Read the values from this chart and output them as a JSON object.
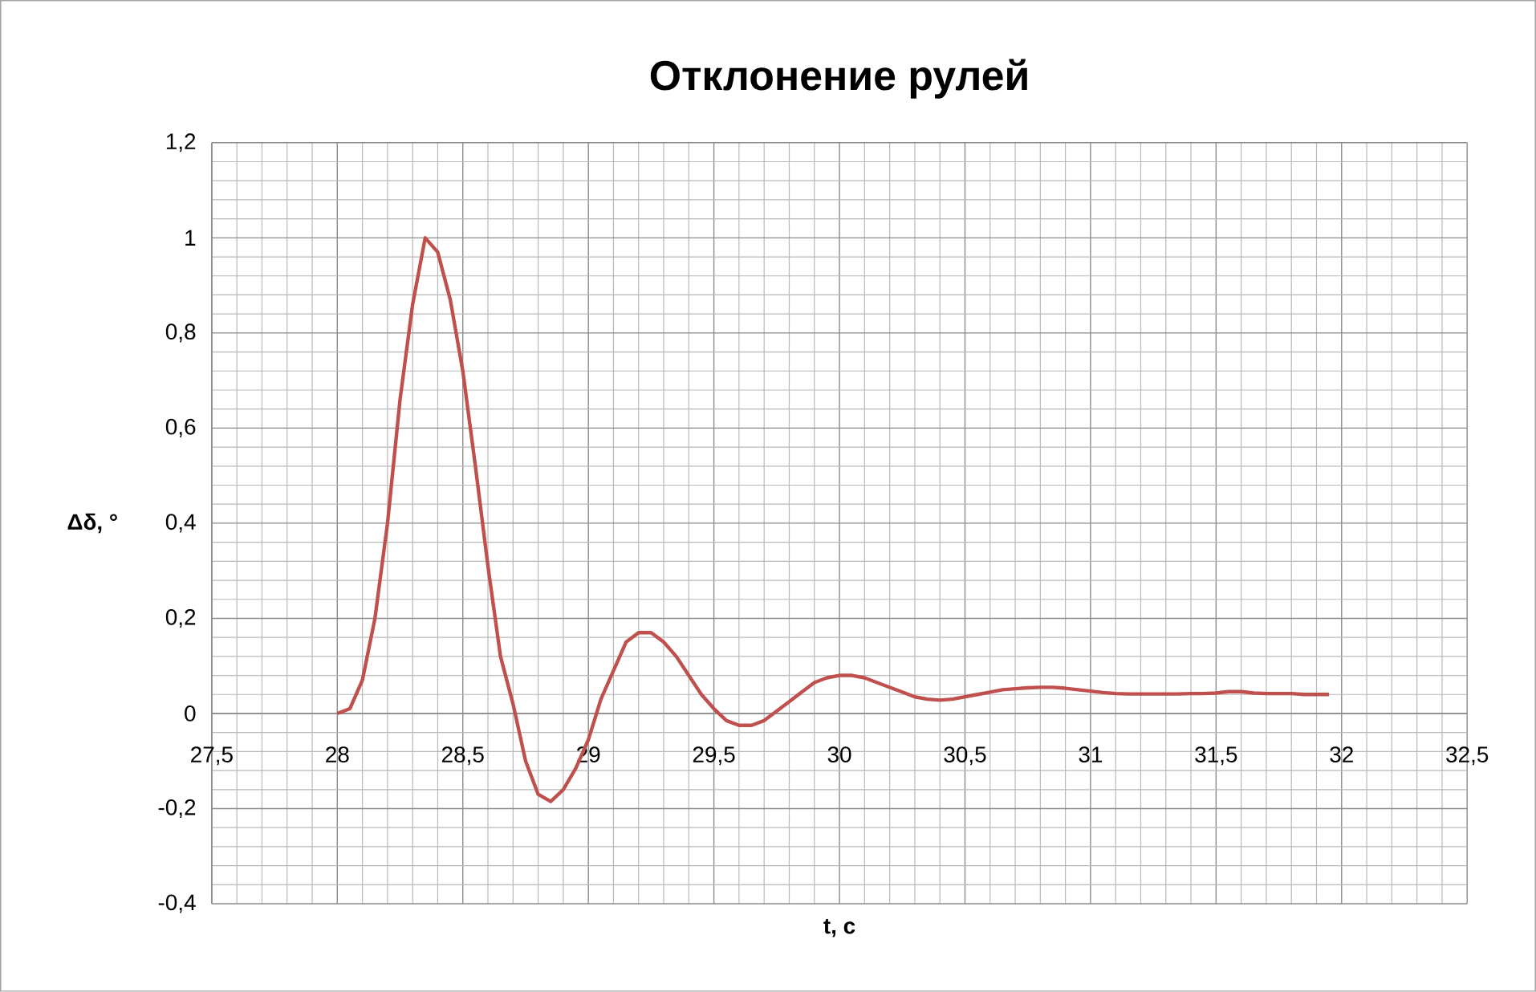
{
  "chart_data": {
    "type": "line",
    "title": "Отклонение рулей",
    "xlabel": "t, c",
    "ylabel": "Δδ, °",
    "x": [
      28.0,
      28.05,
      28.1,
      28.15,
      28.2,
      28.25,
      28.3,
      28.35,
      28.4,
      28.45,
      28.5,
      28.55,
      28.6,
      28.65,
      28.7,
      28.75,
      28.8,
      28.85,
      28.9,
      28.95,
      29.0,
      29.05,
      29.1,
      29.15,
      29.2,
      29.25,
      29.3,
      29.35,
      29.4,
      29.45,
      29.5,
      29.55,
      29.6,
      29.65,
      29.7,
      29.75,
      29.8,
      29.85,
      29.9,
      29.95,
      30.0,
      30.05,
      30.1,
      30.15,
      30.2,
      30.25,
      30.3,
      30.35,
      30.4,
      30.45,
      30.5,
      30.55,
      30.6,
      30.65,
      30.7,
      30.75,
      30.8,
      30.85,
      30.9,
      30.95,
      31.0,
      31.05,
      31.1,
      31.15,
      31.2,
      31.25,
      31.3,
      31.35,
      31.4,
      31.45,
      31.5,
      31.55,
      31.6,
      31.65,
      31.7,
      31.75,
      31.8,
      31.85,
      31.9,
      31.95
    ],
    "series": [
      {
        "color": "#c0504d",
        "values": [
          0,
          0.01,
          0.07,
          0.2,
          0.4,
          0.66,
          0.86,
          1.0,
          0.97,
          0.87,
          0.72,
          0.52,
          0.31,
          0.12,
          0.02,
          -0.1,
          -0.17,
          -0.185,
          -0.16,
          -0.115,
          -0.055,
          0.03,
          0.09,
          0.15,
          0.17,
          0.17,
          0.15,
          0.12,
          0.08,
          0.04,
          0.01,
          -0.015,
          -0.025,
          -0.025,
          -0.015,
          0.005,
          0.025,
          0.045,
          0.065,
          0.075,
          0.08,
          0.08,
          0.075,
          0.065,
          0.055,
          0.045,
          0.035,
          0.03,
          0.028,
          0.03,
          0.035,
          0.04,
          0.045,
          0.05,
          0.052,
          0.054,
          0.055,
          0.055,
          0.053,
          0.05,
          0.047,
          0.044,
          0.042,
          0.041,
          0.041,
          0.041,
          0.041,
          0.041,
          0.042,
          0.042,
          0.043,
          0.046,
          0.046,
          0.043,
          0.042,
          0.042,
          0.042,
          0.04,
          0.04,
          0.04
        ]
      }
    ],
    "xlim": [
      27.5,
      32.5
    ],
    "xticks": [
      {
        "value": 27.5,
        "label": "27,5"
      },
      28,
      {
        "value": 28.5,
        "label": "28,5"
      },
      29,
      {
        "value": 29.5,
        "label": "29,5"
      },
      30,
      {
        "value": 30.5,
        "label": "30,5"
      },
      31,
      {
        "value": 31.5,
        "label": "31,5"
      },
      32,
      {
        "value": 32.5,
        "label": "32,5"
      }
    ],
    "ylim": [
      -0.4,
      1.2
    ],
    "yticks": [
      {
        "value": -0.4,
        "label": "-0,4"
      },
      {
        "value": -0.2,
        "label": "-0,2"
      },
      0,
      {
        "value": 0.2,
        "label": "0,2"
      },
      {
        "value": 0.4,
        "label": "0,4"
      },
      {
        "value": 0.6,
        "label": "0,6"
      },
      {
        "value": 0.8,
        "label": "0,8"
      },
      1,
      {
        "value": 1.2,
        "label": "1,2"
      }
    ],
    "grid": true
  }
}
